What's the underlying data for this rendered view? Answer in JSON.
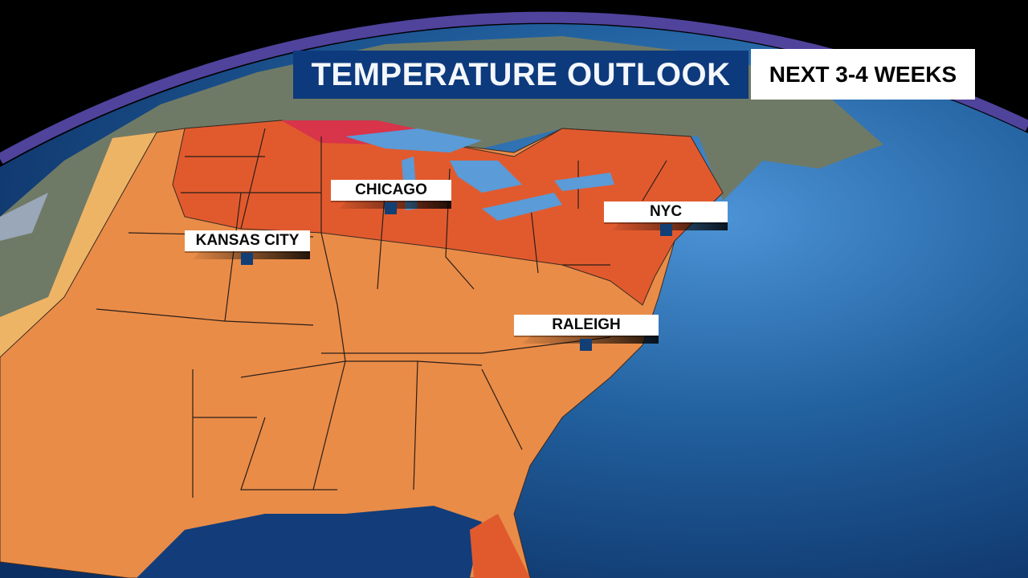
{
  "header": {
    "title": "TEMPERATURE OUTLOOK",
    "subtitle": "NEXT 3-4 WEEKS"
  },
  "cities": [
    {
      "name": "CHICAGO"
    },
    {
      "name": "NYC"
    },
    {
      "name": "KANSAS CITY"
    },
    {
      "name": "RALEIGH"
    }
  ],
  "colors": {
    "title_bg": "#0d3a7c",
    "above_normal": "#e98c48",
    "much_above_normal": "#e15a2e",
    "highest": "#d8344a",
    "slight": "#eeb466",
    "ocean": "#1f5ea8",
    "land": "#6f7a66"
  }
}
